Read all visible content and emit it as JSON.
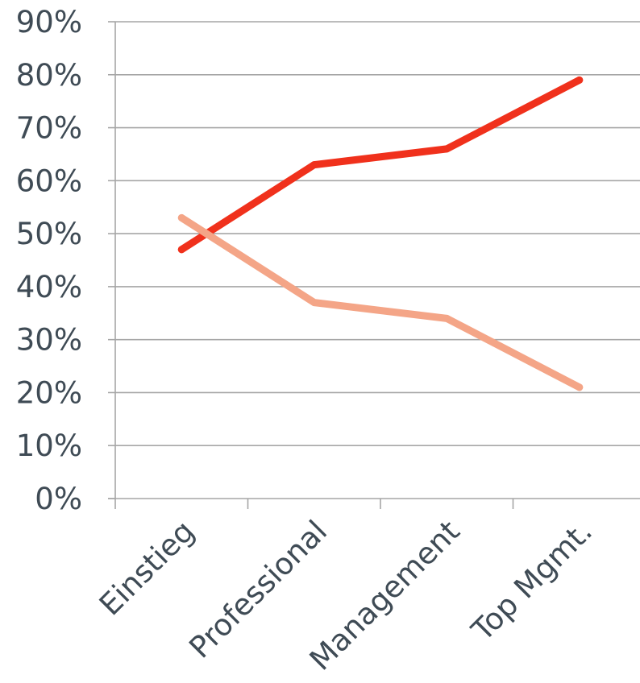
{
  "chart_data": {
    "type": "line",
    "categories": [
      "Einstieg",
      "Professional",
      "Management",
      "Top Mgmt."
    ],
    "series": [
      {
        "values": [
          47,
          63,
          66,
          79
        ],
        "color": "#f0311c"
      },
      {
        "values": [
          53,
          37,
          34,
          21
        ],
        "color": "#f4a587"
      }
    ],
    "y_ticks": [
      "0%",
      "10%",
      "20%",
      "30%",
      "40%",
      "50%",
      "60%",
      "70%",
      "80%",
      "90%"
    ],
    "ylim": [
      0,
      90
    ],
    "y_unit": "%",
    "grid": true,
    "legend": "none",
    "title": "",
    "xlabel": "",
    "ylabel": ""
  }
}
